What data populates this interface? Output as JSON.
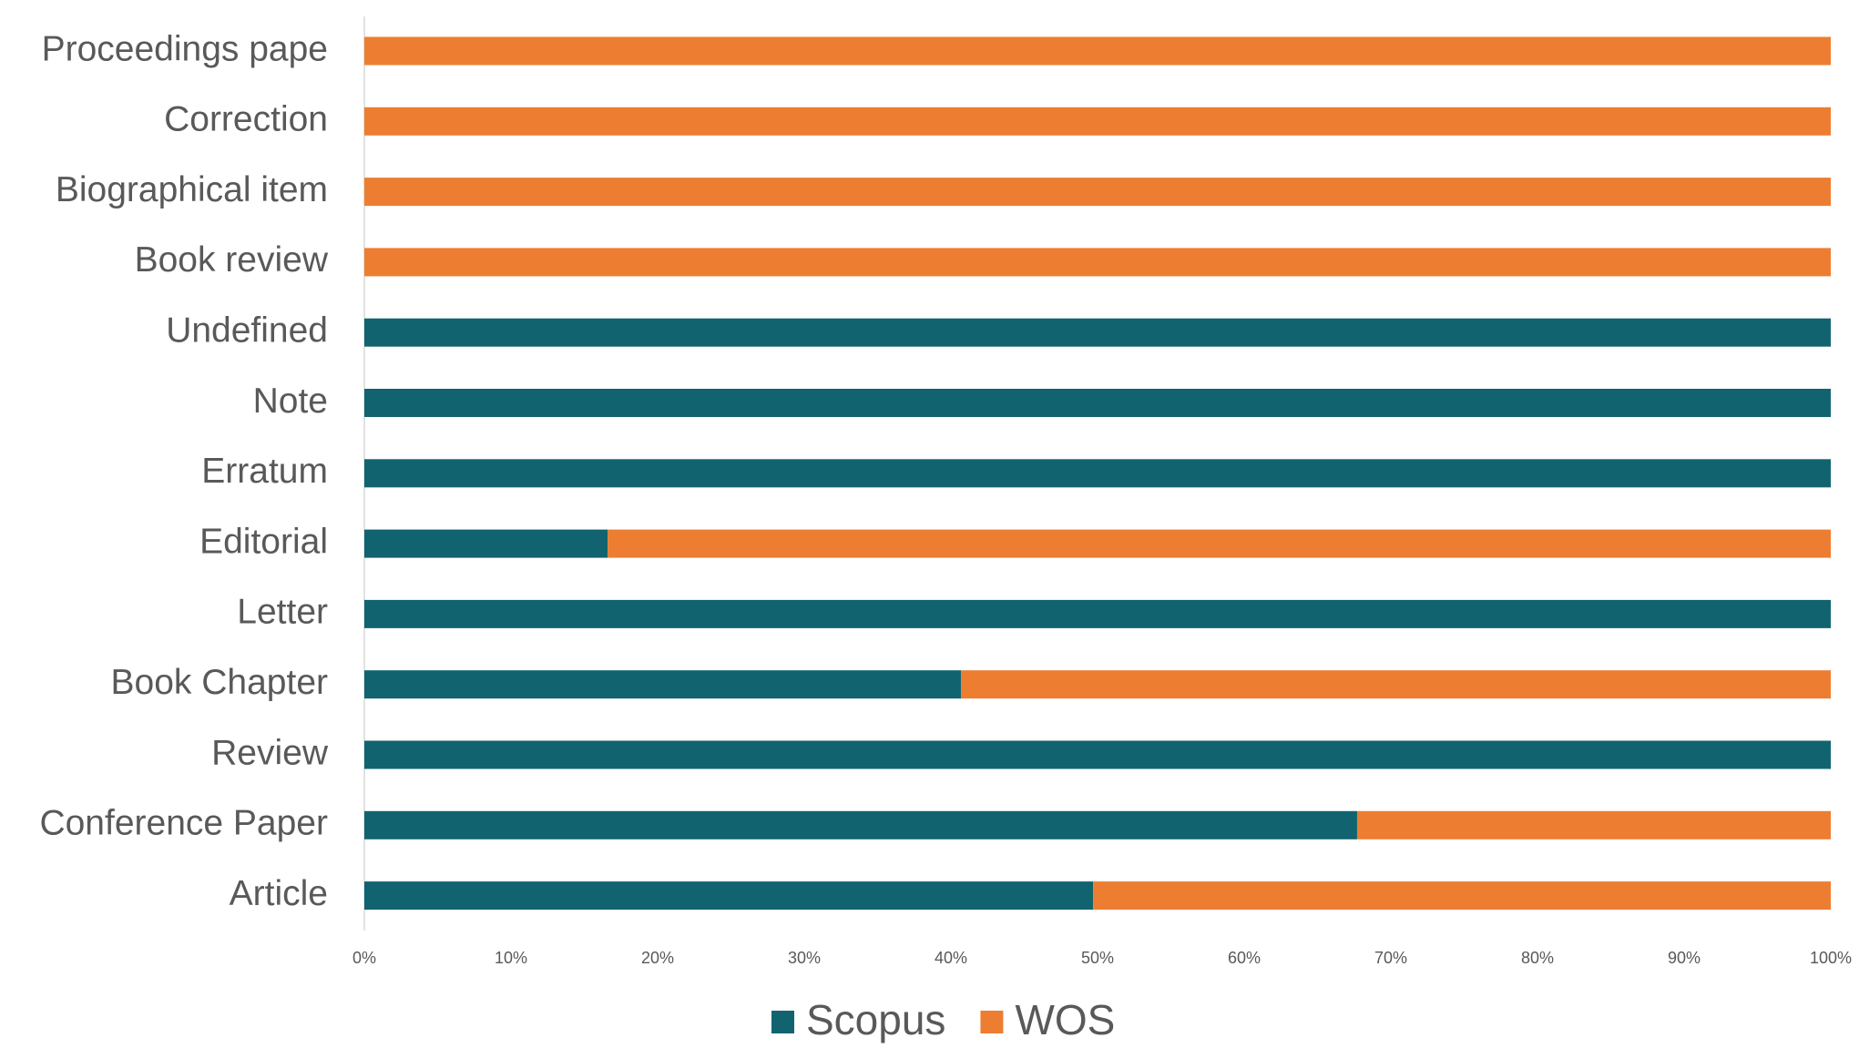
{
  "chart_data": {
    "type": "stacked-barh",
    "categories": [
      "Proceedings pape",
      "Correction",
      "Biographical item",
      "Book review",
      "Undefined",
      "Note",
      "Erratum",
      "Editorial",
      "Letter",
      "Book Chapter",
      "Review",
      "Conference Paper",
      "Article"
    ],
    "series": [
      {
        "name": "Scopus",
        "color": "#11646f",
        "values": [
          0,
          0,
          0,
          0,
          100,
          100,
          100,
          16.6,
          100,
          40.7,
          100,
          67.7,
          49.7
        ]
      },
      {
        "name": "WOS",
        "color": "#ed7d31",
        "values": [
          100,
          100,
          100,
          100,
          0,
          0,
          0,
          83.4,
          0,
          59.3,
          0,
          32.3,
          50.3
        ]
      }
    ],
    "xlim": [
      0,
      100
    ],
    "xticks": [
      {
        "value": 0,
        "label": "0%"
      },
      {
        "value": 10,
        "label": "10%"
      },
      {
        "value": 20,
        "label": "20%"
      },
      {
        "value": 30,
        "label": "30%"
      },
      {
        "value": 40,
        "label": "40%"
      },
      {
        "value": 50,
        "label": "50%"
      },
      {
        "value": 60,
        "label": "60%"
      },
      {
        "value": 70,
        "label": "70%"
      },
      {
        "value": 80,
        "label": "80%"
      },
      {
        "value": 90,
        "label": "90%"
      },
      {
        "value": 100,
        "label": "100%"
      }
    ],
    "legend": "bottom"
  }
}
